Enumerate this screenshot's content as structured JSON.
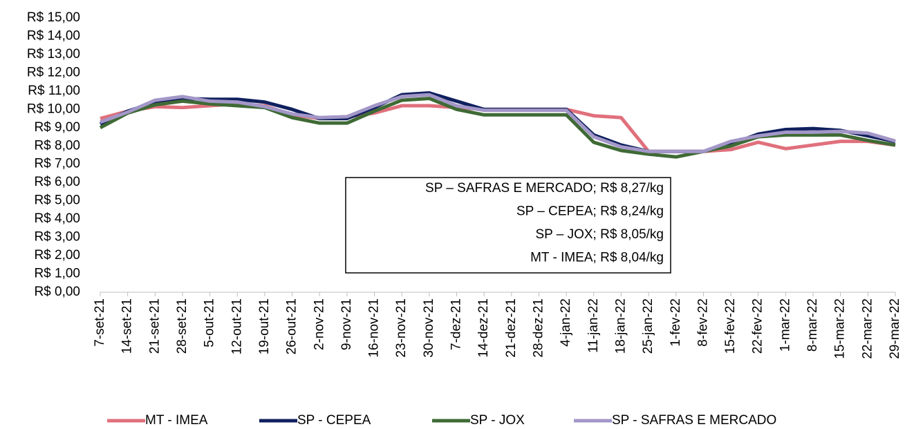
{
  "chart_data": {
    "type": "line",
    "categories": [
      "7-set-21",
      "14-set-21",
      "21-set-21",
      "28-set-21",
      "5-out-21",
      "12-out-21",
      "19-out-21",
      "26-out-21",
      "2-nov-21",
      "9-nov-21",
      "16-nov-21",
      "23-nov-21",
      "30-nov-21",
      "7-dez-21",
      "14-dez-21",
      "21-dez-21",
      "28-dez-21",
      "4-jan-22",
      "11-jan-22",
      "18-jan-22",
      "25-jan-22",
      "1-fev-22",
      "8-fev-22",
      "15-fev-22",
      "22-fev-22",
      "1-mar-22",
      "8-mar-22",
      "15-mar-22",
      "22-mar-22",
      "29-mar-22"
    ],
    "series": [
      {
        "name": "MT - IMEA",
        "color": "#e0707c",
        "values": [
          9.5,
          9.9,
          10.15,
          10.1,
          10.2,
          10.3,
          10.2,
          9.7,
          9.5,
          9.6,
          9.8,
          10.2,
          10.2,
          10.1,
          10.0,
          10.0,
          10.0,
          10.0,
          9.65,
          9.55,
          7.7,
          7.7,
          7.7,
          7.8,
          8.2,
          7.85,
          8.05,
          8.25,
          8.25,
          8.04
        ]
      },
      {
        "name": "SP - CEPEA",
        "color": "#10205e",
        "values": [
          9.2,
          9.9,
          10.4,
          10.6,
          10.55,
          10.55,
          10.4,
          10.0,
          9.5,
          9.5,
          10.1,
          10.8,
          10.9,
          10.45,
          10.0,
          10.0,
          10.0,
          10.0,
          8.6,
          8.05,
          7.7,
          7.7,
          7.7,
          8.1,
          8.65,
          8.9,
          8.95,
          8.85,
          8.55,
          8.24
        ]
      },
      {
        "name": "SP - JOX",
        "color": "#3f6a35",
        "values": [
          9.0,
          9.8,
          10.25,
          10.45,
          10.3,
          10.2,
          10.1,
          9.55,
          9.25,
          9.25,
          9.9,
          10.5,
          10.6,
          10.0,
          9.7,
          9.7,
          9.7,
          9.7,
          8.2,
          7.75,
          7.55,
          7.4,
          7.7,
          8.0,
          8.5,
          8.6,
          8.6,
          8.6,
          8.3,
          8.05
        ]
      },
      {
        "name": "SP - SAFRAS E MERCADO",
        "color": "#a397c8",
        "values": [
          9.3,
          9.85,
          10.5,
          10.7,
          10.45,
          10.4,
          10.15,
          9.75,
          9.55,
          9.6,
          10.2,
          10.7,
          10.8,
          10.2,
          9.95,
          9.95,
          9.95,
          9.95,
          8.5,
          7.95,
          7.7,
          7.7,
          7.7,
          8.25,
          8.55,
          8.75,
          8.75,
          8.8,
          8.7,
          8.27
        ]
      }
    ],
    "ylim": [
      0,
      15
    ],
    "yticks": [
      {
        "value": 0,
        "label": "R$ 0,00"
      },
      {
        "value": 1,
        "label": "R$ 1,00"
      },
      {
        "value": 2,
        "label": "R$ 2,00"
      },
      {
        "value": 3,
        "label": "R$ 3,00"
      },
      {
        "value": 4,
        "label": "R$ 4,00"
      },
      {
        "value": 5,
        "label": "R$ 5,00"
      },
      {
        "value": 6,
        "label": "R$ 6,00"
      },
      {
        "value": 7,
        "label": "R$ 7,00"
      },
      {
        "value": 8,
        "label": "R$ 8,00"
      },
      {
        "value": 9,
        "label": "R$ 9,00"
      },
      {
        "value": 10,
        "label": "R$ 10,00"
      },
      {
        "value": 11,
        "label": "R$ 11,00"
      },
      {
        "value": 12,
        "label": "R$ 12,00"
      },
      {
        "value": 13,
        "label": "R$ 13,00"
      },
      {
        "value": 14,
        "label": "R$ 14,00"
      },
      {
        "value": 15,
        "label": "R$ 15,00"
      }
    ],
    "grid": false,
    "legend": "bottom",
    "annotations": [
      "SP – SAFRAS E MERCADO; R$ 8,27/kg",
      "SP – CEPEA; R$ 8,24/kg",
      "SP – JOX; R$ 8,05/kg",
      "MT - IMEA; R$ 8,04/kg"
    ]
  }
}
